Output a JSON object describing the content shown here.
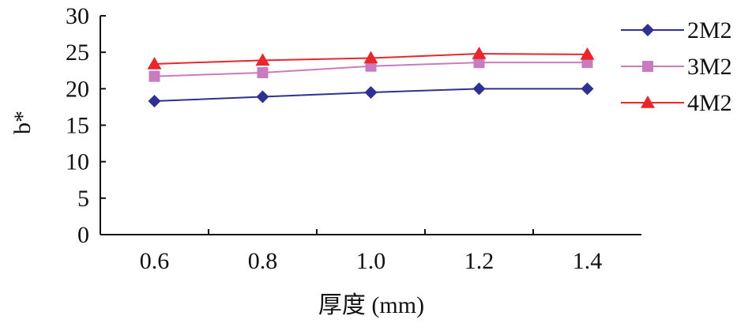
{
  "chart_data": {
    "type": "line",
    "title": "",
    "xlabel": "厚度 (mm)",
    "ylabel": "b*",
    "x": [
      0.6,
      0.8,
      1.0,
      1.2,
      1.4
    ],
    "x_tick_labels": [
      "0.6",
      "0.8",
      "1.0",
      "1.2",
      "1.4"
    ],
    "ylim": [
      0,
      30
    ],
    "y_ticks": [
      0,
      5,
      10,
      15,
      20,
      25,
      30
    ],
    "grid": false,
    "legend_position": "right",
    "series": [
      {
        "name": "2M2",
        "values": [
          18.3,
          18.9,
          19.5,
          20.0,
          20.0
        ],
        "color": "#2e3192",
        "marker": "diamond"
      },
      {
        "name": "3M2",
        "values": [
          21.7,
          22.2,
          23.1,
          23.6,
          23.6
        ],
        "color": "#c97bc0",
        "marker": "square"
      },
      {
        "name": "4M2",
        "values": [
          23.4,
          23.9,
          24.2,
          24.8,
          24.7
        ],
        "color": "#e8262b",
        "marker": "triangle"
      }
    ]
  }
}
